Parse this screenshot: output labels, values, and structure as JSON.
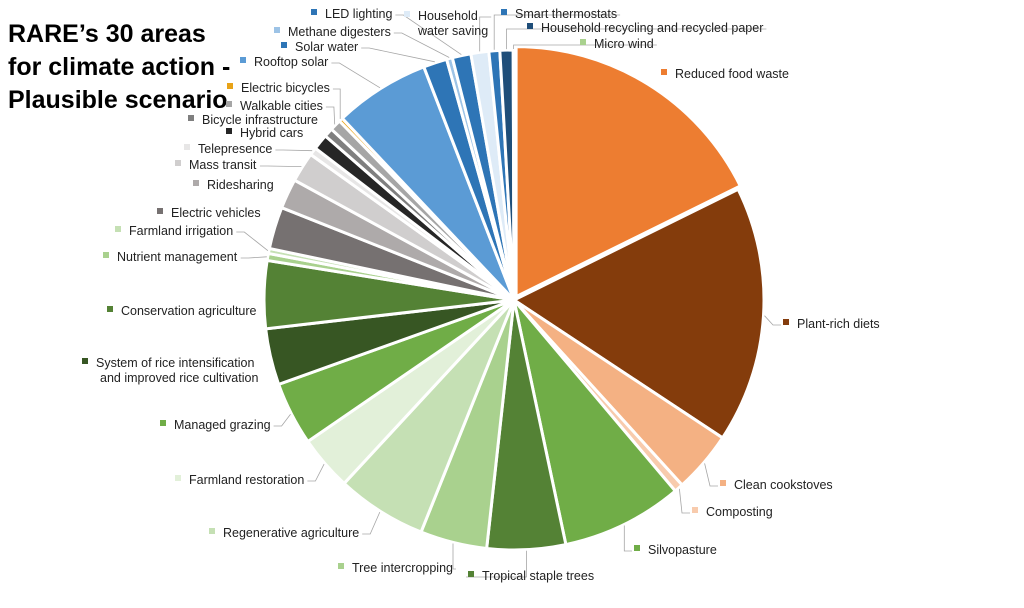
{
  "chart_data": {
    "type": "pie",
    "title": "RARE’s 30 areas for climate action - Plausible scenario",
    "slices": [
      {
        "label": "Reduced food waste",
        "value": 70.5,
        "color": "#ED7D31"
      },
      {
        "label": "Plant-rich diets",
        "value": 66.1,
        "color": "#843C0C"
      },
      {
        "label": "Clean cookstoves",
        "value": 15.8,
        "color": "#F4B183"
      },
      {
        "label": "Composting",
        "value": 2.3,
        "color": "#F8CBAD"
      },
      {
        "label": "Silvopasture",
        "value": 31.2,
        "color": "#70AD47"
      },
      {
        "label": "Tropical staple trees",
        "value": 20.2,
        "color": "#548235"
      },
      {
        "label": "Tree intercropping",
        "value": 17.2,
        "color": "#A9D18E"
      },
      {
        "label": "Regenerative agriculture",
        "value": 23.2,
        "color": "#C5E0B4"
      },
      {
        "label": "Farmland restoration",
        "value": 14.1,
        "color": "#E2F0D9"
      },
      {
        "label": "Managed grazing",
        "value": 16.3,
        "color": "#70AD47"
      },
      {
        "label": "System of rice intensification and improved rice cultivation",
        "value": 14.5,
        "color": "#375623"
      },
      {
        "label": "Conservation agriculture",
        "value": 17.4,
        "color": "#548235"
      },
      {
        "label": "Nutrient management",
        "value": 1.8,
        "color": "#A9D18E"
      },
      {
        "label": "Farmland irrigation",
        "value": 1.3,
        "color": "#C5E0B4"
      },
      {
        "label": "Electric vehicles",
        "value": 10.8,
        "color": "#767171"
      },
      {
        "label": "Ridesharing",
        "value": 7.7,
        "color": "#AEAAAA"
      },
      {
        "label": "Mass transit",
        "value": 7.7,
        "color": "#D0CECE"
      },
      {
        "label": "Telepresence",
        "value": 2.0,
        "color": "#E7E6E6"
      },
      {
        "label": "Hybrid cars",
        "value": 4.0,
        "color": "#262626"
      },
      {
        "label": "Bicycle infrastructure",
        "value": 2.3,
        "color": "#7F7F7F"
      },
      {
        "label": "Walkable cities",
        "value": 2.9,
        "color": "#A6A6A6"
      },
      {
        "label": "Electric bicycles",
        "value": 1.0,
        "color": "#E8A317"
      },
      {
        "label": "Rooftop solar",
        "value": 24.6,
        "color": "#5B9BD5"
      },
      {
        "label": "Solar water",
        "value": 6.1,
        "color": "#2E75B6"
      },
      {
        "label": "Methane digesters",
        "value": 1.5,
        "color": "#9DC3E6"
      },
      {
        "label": "LED lighting",
        "value": 4.8,
        "color": "#2E75B6"
      },
      {
        "label": "Household water saving",
        "value": 4.6,
        "color": "#DEEBF7"
      },
      {
        "label": "Smart thermostats",
        "value": 2.8,
        "color": "#2E75B6"
      },
      {
        "label": "Household recycling and recycled paper",
        "value": 3.4,
        "color": "#1F4E79"
      },
      {
        "label": "Micro wind",
        "value": 0.2,
        "color": "#A9D18E"
      }
    ]
  }
}
